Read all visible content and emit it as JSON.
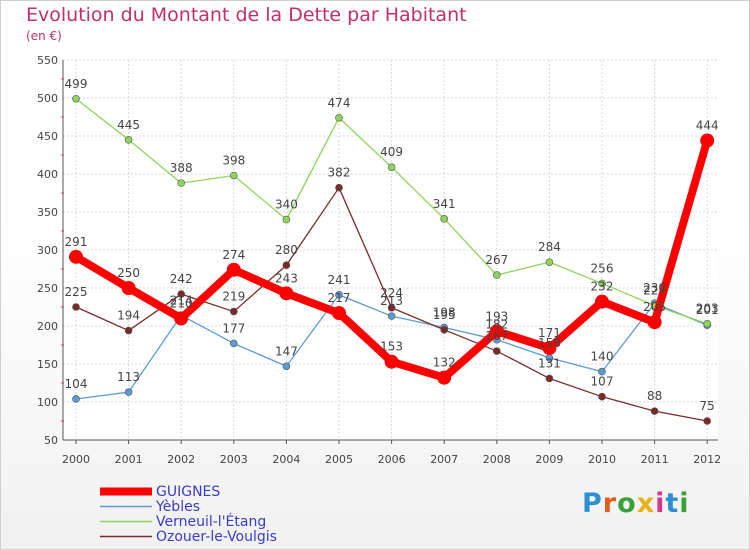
{
  "title": "Evolution du Montant de la Dette par Habitant",
  "subtitle": "(en €)",
  "logo": {
    "text": "Proxiti",
    "letters": [
      "P",
      "r",
      "o",
      "x",
      "i",
      "t",
      "i"
    ],
    "colors": [
      "#2f8fd4",
      "#e05d1c",
      "#3aa13a",
      "#e8b21a",
      "#d43a8a",
      "#2f8fd4",
      "#3aa13a"
    ]
  },
  "colors": {
    "GUIGNES": "#ff0000",
    "Yebles": "#5b9bd5",
    "Verneuil": "#8fd45a",
    "Ozouer": "#7b2a2a"
  },
  "chart_data": {
    "type": "line",
    "title": "Evolution du Montant de la Dette par Habitant",
    "subtitle": "(en €)",
    "categories": [
      "2000",
      "2001",
      "2002",
      "2003",
      "2004",
      "2005",
      "2006",
      "2007",
      "2008",
      "2009",
      "2010",
      "2011",
      "2012"
    ],
    "ylim": [
      50,
      550
    ],
    "yticks": [
      "50",
      "100",
      "150",
      "200",
      "250",
      "300",
      "350",
      "400",
      "450",
      "500",
      "550"
    ],
    "grid": true,
    "legend_position": "bottom-left",
    "series": [
      {
        "name": "GUIGNES",
        "color": "#ff0000",
        "width": 8,
        "marker": 7,
        "values": [
          291,
          250,
          210,
          274,
          243,
          217,
          153,
          132,
          193,
          171,
          232,
          205,
          444
        ],
        "labels": [
          "291",
          "250",
          "210",
          "274",
          "243",
          "217",
          "153",
          "132",
          "193",
          "171",
          "232",
          "205",
          "444"
        ]
      },
      {
        "name": "Yèbles",
        "color": "#5b9bd5",
        "width": 1.3,
        "marker": 3.5,
        "values": [
          104,
          113,
          214,
          177,
          147,
          241,
          213,
          198,
          182,
          158,
          140,
          230,
          201
        ],
        "labels": [
          "104",
          "113",
          "214",
          "177",
          "147",
          "241",
          "213",
          "198",
          "182",
          "158",
          "140",
          "230",
          "201"
        ]
      },
      {
        "name": "Verneuil-l'Étang",
        "color": "#8fd45a",
        "width": 1.3,
        "marker": 3.5,
        "values": [
          499,
          445,
          388,
          398,
          340,
          474,
          409,
          341,
          267,
          284,
          256,
          227,
          203
        ],
        "labels": [
          "499",
          "445",
          "388",
          "398",
          "340",
          "474",
          "409",
          "341",
          "267",
          "284",
          "256",
          "227",
          "203"
        ]
      },
      {
        "name": "Ozouer-le-Voulgis",
        "color": "#7b2a2a",
        "width": 1.3,
        "marker": 3.5,
        "values": [
          225,
          194,
          242,
          219,
          280,
          382,
          224,
          195,
          167,
          131,
          107,
          88,
          75
        ],
        "labels": [
          "225",
          "194",
          "242",
          "219",
          "280",
          "382",
          "224",
          "195",
          "167",
          "131",
          "107",
          "88",
          "75"
        ]
      }
    ]
  }
}
